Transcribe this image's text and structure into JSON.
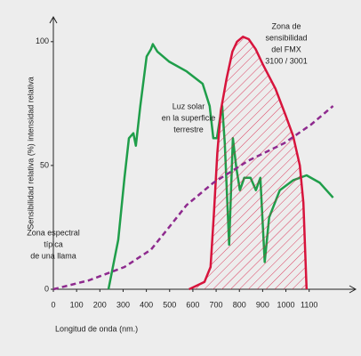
{
  "chart_data": {
    "type": "line",
    "xlabel": "Longitud de onda (nm.)",
    "ylabel": "Sensibilidad relativa (%) intensidad relativa",
    "xlim": [
      0,
      1300
    ],
    "ylim": [
      0,
      110
    ],
    "xticks": [
      0,
      100,
      200,
      300,
      400,
      500,
      600,
      700,
      800,
      900,
      1000,
      1100
    ],
    "yticks": [
      0,
      50,
      100
    ],
    "series": [
      {
        "color": "#1f9e4a",
        "style": "solid",
        "x": [
          237,
          279,
          306,
          325,
          344,
          355,
          374,
          401,
          420,
          428,
          447,
          497,
          573,
          642,
          672,
          688,
          703,
          718,
          726,
          737,
          756,
          772,
          787,
          802,
          821,
          848,
          871,
          890,
          909,
          928,
          974,
          1031,
          1089,
          1146,
          1203
        ],
        "values": [
          0,
          20,
          45,
          61,
          63,
          58,
          74,
          94,
          97,
          99,
          96,
          92,
          88,
          83,
          74,
          61,
          61,
          70,
          74,
          59,
          18,
          61,
          49,
          40,
          45,
          45,
          40,
          45,
          11,
          29,
          40,
          44,
          46,
          43,
          37
        ]
      },
      {
        "color": "#d7143c",
        "style": "hatched",
        "x": [
          584,
          650,
          676,
          690,
          705,
          720,
          745,
          770,
          790,
          815,
          840,
          870,
          900,
          955,
          1000,
          1031,
          1060,
          1075,
          1089
        ],
        "values": [
          0,
          3,
          9,
          30,
          55,
          72,
          85,
          96,
          100,
          102,
          101,
          97,
          91,
          81,
          70,
          62,
          50,
          35,
          0
        ]
      },
      {
        "color": "#8e2a8e",
        "style": "dashed",
        "x": [
          0,
          153,
          306,
          420,
          497,
          573,
          688,
          840,
          993,
          1108,
          1203
        ],
        "values": [
          0,
          3.6,
          9,
          16,
          25,
          34,
          43,
          52,
          59,
          66.5,
          74
        ]
      }
    ],
    "annotations": [
      {
        "lines": [
          "Zona de",
          "sensibilidad",
          "del FMX",
          "3100 / 3001"
        ]
      },
      {
        "lines": [
          "Luz solar",
          "en la superficie",
          "terrestre"
        ]
      },
      {
        "lines": [
          "Zona espectral",
          "típica",
          "de una llama"
        ]
      }
    ]
  }
}
